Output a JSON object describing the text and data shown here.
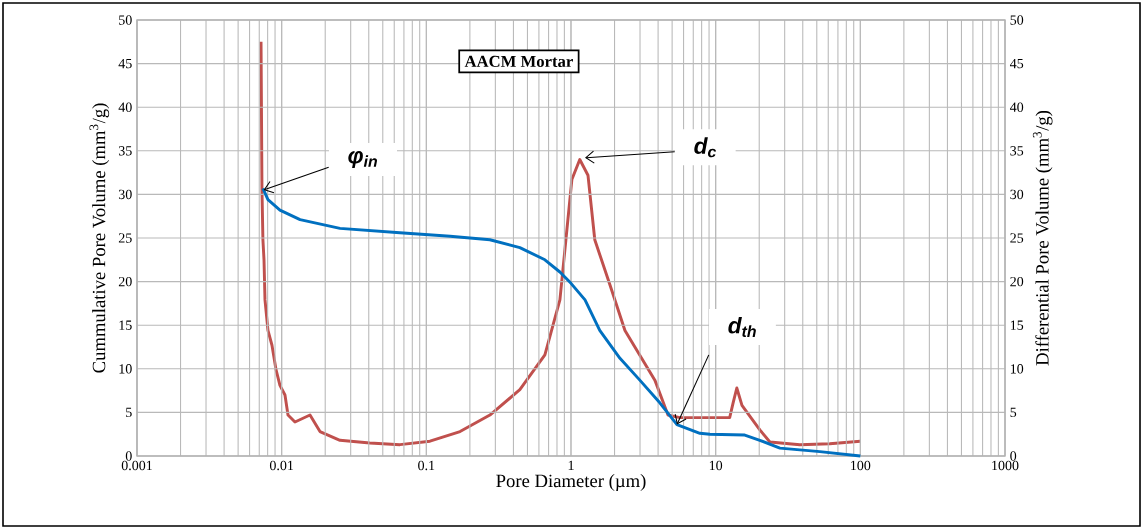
{
  "chart_data": {
    "type": "line",
    "title": "AACM Mortar",
    "xlabel": "Pore Diameter (µm)",
    "ylabel": "Cummulative Pore Volume (mm$^{3}$/g)",
    "y2label": "Differential Pore Volume (mm$^{3}$/g)",
    "log": "x",
    "grid": true,
    "xlim": [
      0.001,
      1000
    ],
    "xticks": [
      0.001,
      0.01,
      0.1,
      1,
      10,
      100,
      1000
    ],
    "ylim": [
      0,
      50
    ],
    "yticks": [
      0,
      5,
      10,
      15,
      20,
      25,
      30,
      35,
      40,
      45,
      50
    ],
    "y2lim": [
      0,
      50
    ],
    "y2ticks": [
      0,
      5,
      10,
      15,
      20,
      25,
      30,
      35,
      40,
      45,
      50
    ],
    "series": [
      {
        "color": "#0070c0",
        "x": [
          0.00742,
          0.00804,
          0.00973,
          0.0134,
          0.0253,
          0.0657,
          0.146,
          0.275,
          0.443,
          0.66,
          0.838,
          1.0,
          1.25,
          1.58,
          2.18,
          2.99,
          4.11,
          5.4,
          7.78,
          9.12,
          15.9,
          20.2,
          27.8,
          52.5,
          100
        ],
        "values": [
          30.7,
          29.4,
          28.2,
          27.1,
          26.1,
          25.6,
          25.2,
          24.8,
          23.9,
          22.5,
          21.1,
          19.8,
          17.9,
          14.4,
          11.2,
          8.7,
          6.1,
          3.6,
          2.6,
          2.5,
          2.4,
          1.8,
          0.9,
          0.5,
          0
        ]
      },
      {
        "color": "#c0504d",
        "axis": "y2",
        "x": [
          0.0072,
          0.00731,
          0.00742,
          0.00755,
          0.00767,
          0.00804,
          0.00857,
          0.00914,
          0.00973,
          0.01054,
          0.01106,
          0.01236,
          0.0157,
          0.0184,
          0.0253,
          0.0407,
          0.0657,
          0.106,
          0.171,
          0.275,
          0.443,
          0.66,
          0.838,
          0.922,
          1.014,
          1.15,
          1.31,
          1.46,
          1.86,
          2.36,
          3.8,
          4.68,
          5.66,
          12.5,
          13.2,
          14.0,
          15.2,
          20.2,
          23.7,
          38.2,
          61.5,
          100
        ],
        "values": [
          47.5,
          30.5,
          24.8,
          22.5,
          17.9,
          14.4,
          12.7,
          9.9,
          8.1,
          7.0,
          4.7,
          3.9,
          4.7,
          2.8,
          1.8,
          1.5,
          1.3,
          1.7,
          2.8,
          4.7,
          7.6,
          11.6,
          17.9,
          24.8,
          31.7,
          34,
          32.2,
          24.8,
          19.6,
          14.4,
          8.7,
          4.7,
          4.4,
          4.4,
          6.1,
          7.8,
          5.8,
          3.0,
          1.6,
          1.3,
          1.4,
          1.7
        ]
      }
    ],
    "annotations": [
      {
        "text": "φ$_{in}$",
        "x": 0.0075,
        "y": 30.5
      },
      {
        "text": "d$_{c}$",
        "x": 1.25,
        "y": 34.2
      },
      {
        "text": "d$_{th}$",
        "x": 5.4,
        "y": 3.6
      }
    ]
  }
}
